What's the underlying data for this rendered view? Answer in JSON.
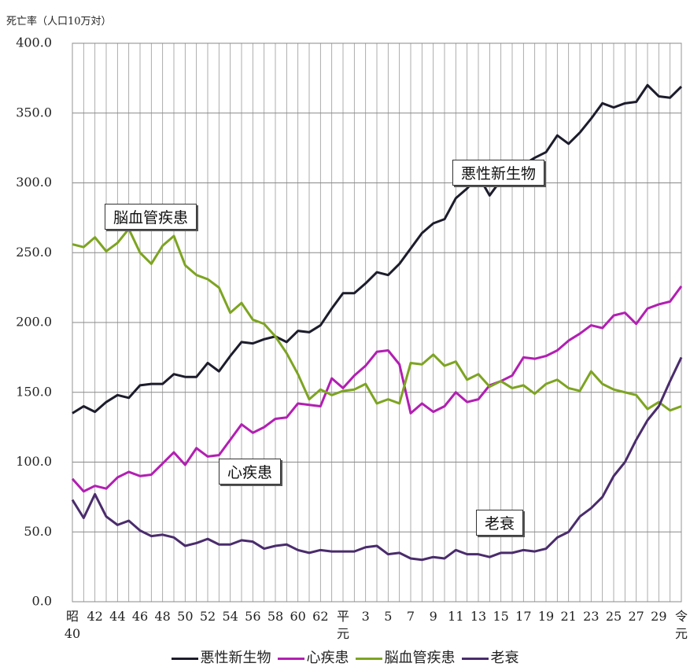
{
  "chart_data": {
    "type": "line",
    "y_label": "死亡率（人口10万対）",
    "categories": [
      "昭\n40",
      null,
      "42",
      null,
      "44",
      null,
      "46",
      null,
      "48",
      null,
      "50",
      null,
      "52",
      null,
      "54",
      null,
      "56",
      null,
      "58",
      null,
      "60",
      null,
      "62",
      null,
      "平\n元",
      null,
      "3",
      null,
      "5",
      null,
      "7",
      null,
      "9",
      null,
      "11",
      null,
      "13",
      null,
      "15",
      null,
      "17",
      null,
      "19",
      null,
      "21",
      null,
      "23",
      null,
      "25",
      null,
      "27",
      null,
      "29",
      null,
      "令\n元"
    ],
    "series": [
      {
        "name": "悪性新生物",
        "color": "#1c1c2c",
        "values": [
          135,
          140,
          136,
          143,
          148,
          146,
          155,
          156,
          156,
          163,
          161,
          161,
          171,
          165,
          176,
          186,
          185,
          188,
          190,
          186,
          194,
          193,
          198,
          210,
          221,
          221,
          228,
          236,
          234,
          242,
          253,
          264,
          271,
          274,
          289,
          296,
          305,
          291,
          302,
          304,
          313,
          318,
          322,
          334,
          328,
          336,
          346,
          357,
          354,
          357,
          358,
          370,
          362,
          361,
          369
        ]
      },
      {
        "name": "心疾患",
        "color": "#b21fb2",
        "values": [
          88,
          79,
          83,
          81,
          89,
          93,
          90,
          91,
          99,
          107,
          98,
          110,
          104,
          105,
          116,
          127,
          121,
          125,
          131,
          132,
          142,
          141,
          140,
          160,
          153,
          162,
          169,
          179,
          180,
          170,
          135,
          142,
          136,
          140,
          150,
          143,
          145,
          155,
          158,
          162,
          175,
          174,
          176,
          180,
          187,
          192,
          198,
          196,
          205,
          207,
          199,
          210,
          213,
          215,
          226
        ]
      },
      {
        "name": "脳血管疾患",
        "color": "#7da421",
        "values": [
          256,
          254,
          261,
          251,
          257,
          267,
          250,
          242,
          255,
          262,
          241,
          234,
          231,
          225,
          207,
          214,
          202,
          199,
          190,
          178,
          163,
          145,
          152,
          148,
          151,
          152,
          156,
          142,
          145,
          142,
          171,
          170,
          177,
          169,
          172,
          159,
          163,
          154,
          158,
          153,
          155,
          149,
          156,
          159,
          153,
          151,
          165,
          156,
          152,
          150,
          148,
          138,
          143,
          137,
          140
        ]
      },
      {
        "name": "老衰",
        "color": "#4a2c6c",
        "values": [
          73,
          60,
          77,
          61,
          55,
          58,
          51,
          47,
          48,
          46,
          40,
          42,
          45,
          41,
          41,
          44,
          43,
          38,
          40,
          41,
          37,
          35,
          37,
          36,
          36,
          36,
          39,
          40,
          34,
          35,
          31,
          30,
          32,
          31,
          37,
          34,
          34,
          32,
          35,
          35,
          37,
          36,
          38,
          46,
          50,
          61,
          67,
          75,
          90,
          100,
          116,
          130,
          140,
          158,
          175
        ]
      }
    ],
    "annotations": [
      "悪性新生物",
      "脳血管疾患",
      "心疾患",
      "老衰"
    ],
    "ylim": [
      0,
      400
    ],
    "yticks": [
      {
        "value": 0,
        "label": "0.0"
      },
      {
        "value": 50,
        "label": "50.0"
      },
      {
        "value": 100,
        "label": "100.0"
      },
      {
        "value": 150,
        "label": "150.0"
      },
      {
        "value": 200,
        "label": "200.0"
      },
      {
        "value": 250,
        "label": "250.0"
      },
      {
        "value": 300,
        "label": "300.0"
      },
      {
        "value": 350,
        "label": "350.0"
      },
      {
        "value": 400,
        "label": "400.0"
      }
    ],
    "grid": true
  }
}
